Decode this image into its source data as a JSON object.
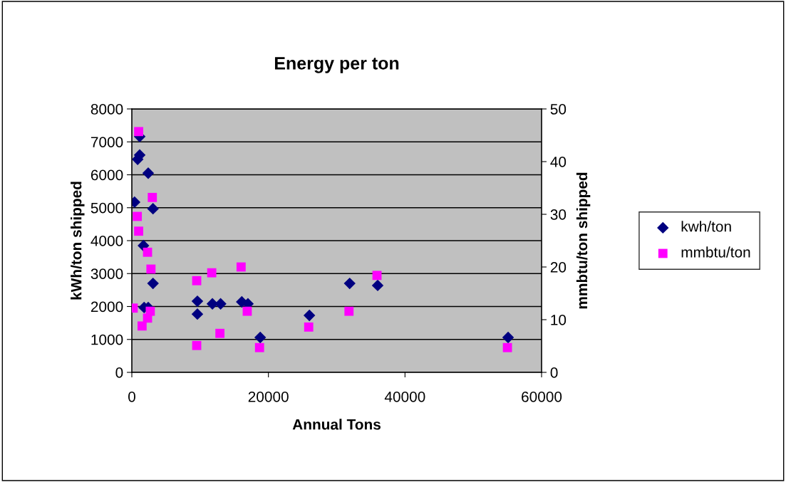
{
  "chart_data": {
    "type": "scatter",
    "title": "Energy per ton",
    "xlabel": "Annual Tons",
    "ylabel": "kWh/ton shipped",
    "y2label": "mmbtu/ton shipped",
    "xlim": [
      0,
      60000
    ],
    "xticks": [
      0,
      20000,
      40000,
      60000
    ],
    "ylim": [
      0,
      8000
    ],
    "yticks": [
      0,
      1000,
      2000,
      3000,
      4000,
      5000,
      6000,
      7000,
      8000
    ],
    "y2lim": [
      0,
      50
    ],
    "y2ticks": [
      0,
      10,
      20,
      30,
      40,
      50
    ],
    "grid": "y",
    "legend": "right",
    "series": [
      {
        "name": "kwh/ton",
        "color": "#000080",
        "marker": "diamond",
        "x": [
          1150,
          1150,
          850,
          2400,
          400,
          3100,
          1700,
          3100,
          1800,
          2400,
          9600,
          9600,
          11800,
          13000,
          16100,
          17000,
          18800,
          26000,
          31900,
          36000,
          55100
        ],
        "values": [
          7160,
          6600,
          6470,
          6050,
          5170,
          4970,
          3850,
          2700,
          1970,
          1970,
          2160,
          1770,
          2080,
          2080,
          2140,
          2080,
          1060,
          1730,
          2700,
          2640,
          1060
        ]
      },
      {
        "name": "mmbtu/ton",
        "color": "#ff00ff",
        "marker": "square",
        "axis": "y2",
        "x": [
          1000,
          3000,
          800,
          1000,
          2300,
          2800,
          200,
          2700,
          1700,
          1500,
          2300,
          9500,
          9500,
          11700,
          16000,
          12900,
          16900,
          18700,
          25900,
          31800,
          35900,
          55000
        ],
        "values": [
          45.7,
          33.2,
          29.6,
          26.8,
          22.8,
          19.6,
          12.2,
          11.6,
          null,
          8.8,
          10.3,
          17.4,
          5.1,
          18.9,
          20.0,
          7.4,
          11.6,
          4.7,
          8.6,
          11.6,
          18.4,
          4.7
        ]
      }
    ]
  }
}
